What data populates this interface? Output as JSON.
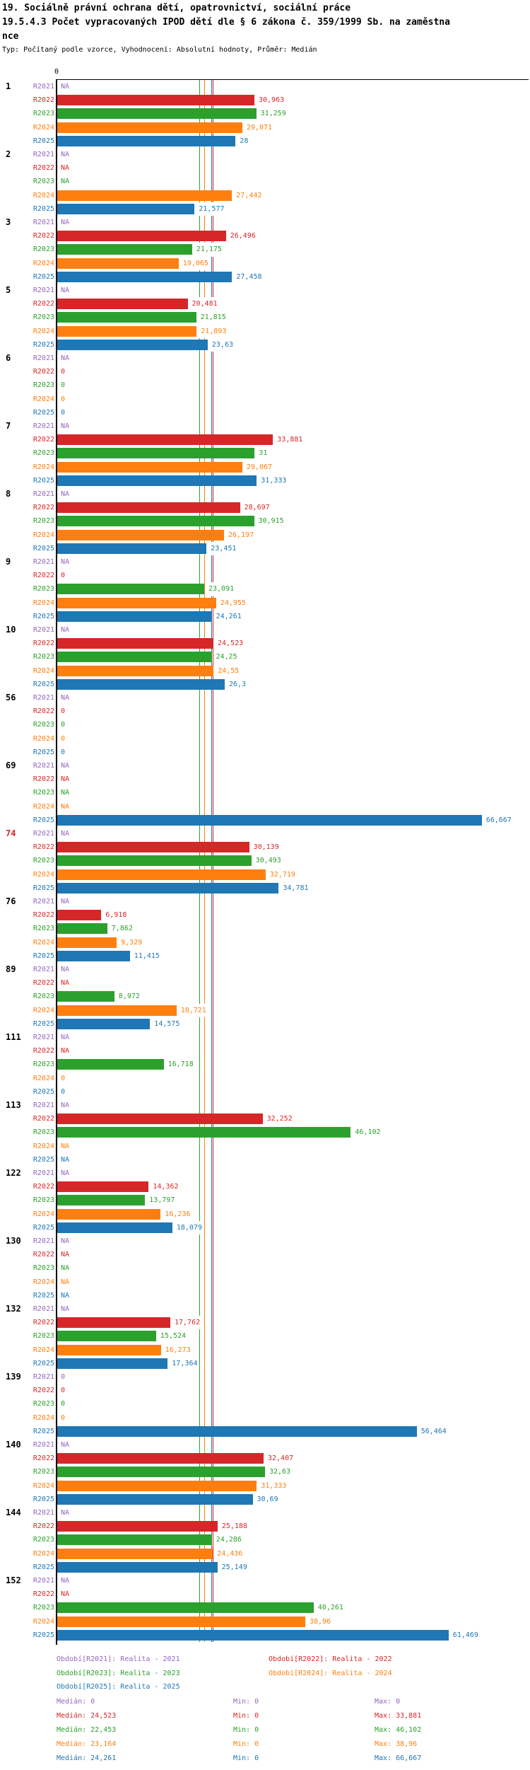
{
  "header": {
    "title": "19. Sociálně právní ochrana dětí, opatrovnictví, sociální práce",
    "subtitle_line1": "19.5.4.3 Počet vypracovaných IPOD dětí dle § 6 zákona č. 359/1999 Sb. na zaměstna",
    "subtitle_line2": "nce",
    "meta": "Typ: Počítaný podle vzorce, Vyhodnocení: Absolutní hodnoty, Průměr: Medián"
  },
  "colors": {
    "R2021": "#9467bd",
    "R2022": "#d62728",
    "R2023": "#2ca02c",
    "R2024": "#ff7f0e",
    "R2025": "#1f77b4",
    "axis": "#000000",
    "highlight_group": "#d62728"
  },
  "chart_data": {
    "type": "bar",
    "orientation": "horizontal",
    "x_axis": {
      "origin_label": "0"
    },
    "series_order": [
      "R2021",
      "R2022",
      "R2023",
      "R2024",
      "R2025"
    ],
    "medians": {
      "R2021": 0,
      "R2022": 24.523,
      "R2023": 22.453,
      "R2024": 23.164,
      "R2025": 24.261
    },
    "groups": [
      {
        "id": "1",
        "highlight": false,
        "rows": [
          {
            "series": "R2021",
            "display": "NA",
            "value": null
          },
          {
            "series": "R2022",
            "display": "30,963",
            "value": 30.963
          },
          {
            "series": "R2023",
            "display": "31,259",
            "value": 31.259
          },
          {
            "series": "R2024",
            "display": "29,071",
            "value": 29.071
          },
          {
            "series": "R2025",
            "display": "28",
            "value": 28
          }
        ]
      },
      {
        "id": "2",
        "highlight": false,
        "rows": [
          {
            "series": "R2021",
            "display": "NA",
            "value": null
          },
          {
            "series": "R2022",
            "display": "NA",
            "value": null
          },
          {
            "series": "R2023",
            "display": "NA",
            "value": null
          },
          {
            "series": "R2024",
            "display": "27,442",
            "value": 27.442
          },
          {
            "series": "R2025",
            "display": "21,577",
            "value": 21.577
          }
        ]
      },
      {
        "id": "3",
        "highlight": false,
        "rows": [
          {
            "series": "R2021",
            "display": "NA",
            "value": null
          },
          {
            "series": "R2022",
            "display": "26,496",
            "value": 26.496
          },
          {
            "series": "R2023",
            "display": "21,175",
            "value": 21.175
          },
          {
            "series": "R2024",
            "display": "19,065",
            "value": 19.065
          },
          {
            "series": "R2025",
            "display": "27,458",
            "value": 27.458
          }
        ]
      },
      {
        "id": "5",
        "highlight": false,
        "rows": [
          {
            "series": "R2021",
            "display": "NA",
            "value": null
          },
          {
            "series": "R2022",
            "display": "20,481",
            "value": 20.481
          },
          {
            "series": "R2023",
            "display": "21,815",
            "value": 21.815
          },
          {
            "series": "R2024",
            "display": "21,893",
            "value": 21.893
          },
          {
            "series": "R2025",
            "display": "23,63",
            "value": 23.63
          }
        ]
      },
      {
        "id": "6",
        "highlight": false,
        "rows": [
          {
            "series": "R2021",
            "display": "NA",
            "value": null
          },
          {
            "series": "R2022",
            "display": "0",
            "value": 0
          },
          {
            "series": "R2023",
            "display": "0",
            "value": 0
          },
          {
            "series": "R2024",
            "display": "0",
            "value": 0
          },
          {
            "series": "R2025",
            "display": "0",
            "value": 0
          }
        ]
      },
      {
        "id": "7",
        "highlight": false,
        "rows": [
          {
            "series": "R2021",
            "display": "NA",
            "value": null
          },
          {
            "series": "R2022",
            "display": "33,881",
            "value": 33.881
          },
          {
            "series": "R2023",
            "display": "31",
            "value": 31
          },
          {
            "series": "R2024",
            "display": "29,067",
            "value": 29.067
          },
          {
            "series": "R2025",
            "display": "31,333",
            "value": 31.333
          }
        ]
      },
      {
        "id": "8",
        "highlight": false,
        "rows": [
          {
            "series": "R2021",
            "display": "NA",
            "value": null
          },
          {
            "series": "R2022",
            "display": "28,697",
            "value": 28.697
          },
          {
            "series": "R2023",
            "display": "30,915",
            "value": 30.915
          },
          {
            "series": "R2024",
            "display": "26,197",
            "value": 26.197
          },
          {
            "series": "R2025",
            "display": "23,451",
            "value": 23.451
          }
        ]
      },
      {
        "id": "9",
        "highlight": false,
        "rows": [
          {
            "series": "R2021",
            "display": "NA",
            "value": null
          },
          {
            "series": "R2022",
            "display": "0",
            "value": 0
          },
          {
            "series": "R2023",
            "display": "23,091",
            "value": 23.091
          },
          {
            "series": "R2024",
            "display": "24,955",
            "value": 24.955
          },
          {
            "series": "R2025",
            "display": "24,261",
            "value": 24.261
          }
        ]
      },
      {
        "id": "10",
        "highlight": false,
        "rows": [
          {
            "series": "R2021",
            "display": "NA",
            "value": null
          },
          {
            "series": "R2022",
            "display": "24,523",
            "value": 24.523
          },
          {
            "series": "R2023",
            "display": "24,25",
            "value": 24.25
          },
          {
            "series": "R2024",
            "display": "24,55",
            "value": 24.55
          },
          {
            "series": "R2025",
            "display": "26,3",
            "value": 26.3
          }
        ]
      },
      {
        "id": "56",
        "highlight": false,
        "rows": [
          {
            "series": "R2021",
            "display": "NA",
            "value": null
          },
          {
            "series": "R2022",
            "display": "0",
            "value": 0
          },
          {
            "series": "R2023",
            "display": "0",
            "value": 0
          },
          {
            "series": "R2024",
            "display": "0",
            "value": 0
          },
          {
            "series": "R2025",
            "display": "0",
            "value": 0
          }
        ]
      },
      {
        "id": "69",
        "highlight": false,
        "rows": [
          {
            "series": "R2021",
            "display": "NA",
            "value": null
          },
          {
            "series": "R2022",
            "display": "NA",
            "value": null
          },
          {
            "series": "R2023",
            "display": "NA",
            "value": null
          },
          {
            "series": "R2024",
            "display": "NA",
            "value": null
          },
          {
            "series": "R2025",
            "display": "66,667",
            "value": 66.667
          }
        ]
      },
      {
        "id": "74",
        "highlight": true,
        "rows": [
          {
            "series": "R2021",
            "display": "NA",
            "value": null
          },
          {
            "series": "R2022",
            "display": "30,139",
            "value": 30.139
          },
          {
            "series": "R2023",
            "display": "30,493",
            "value": 30.493
          },
          {
            "series": "R2024",
            "display": "32,719",
            "value": 32.719
          },
          {
            "series": "R2025",
            "display": "34,781",
            "value": 34.781
          }
        ]
      },
      {
        "id": "76",
        "highlight": false,
        "rows": [
          {
            "series": "R2021",
            "display": "NA",
            "value": null
          },
          {
            "series": "R2022",
            "display": "6,918",
            "value": 6.918
          },
          {
            "series": "R2023",
            "display": "7,862",
            "value": 7.862
          },
          {
            "series": "R2024",
            "display": "9,329",
            "value": 9.329
          },
          {
            "series": "R2025",
            "display": "11,415",
            "value": 11.415
          }
        ]
      },
      {
        "id": "89",
        "highlight": false,
        "rows": [
          {
            "series": "R2021",
            "display": "NA",
            "value": null
          },
          {
            "series": "R2022",
            "display": "NA",
            "value": null
          },
          {
            "series": "R2023",
            "display": "8,972",
            "value": 8.972
          },
          {
            "series": "R2024",
            "display": "18,721",
            "value": 18.721
          },
          {
            "series": "R2025",
            "display": "14,575",
            "value": 14.575
          }
        ]
      },
      {
        "id": "111",
        "highlight": false,
        "rows": [
          {
            "series": "R2021",
            "display": "NA",
            "value": null
          },
          {
            "series": "R2022",
            "display": "NA",
            "value": null
          },
          {
            "series": "R2023",
            "display": "16,718",
            "value": 16.718
          },
          {
            "series": "R2024",
            "display": "0",
            "value": 0
          },
          {
            "series": "R2025",
            "display": "0",
            "value": 0
          }
        ]
      },
      {
        "id": "113",
        "highlight": false,
        "rows": [
          {
            "series": "R2021",
            "display": "NA",
            "value": null
          },
          {
            "series": "R2022",
            "display": "32,252",
            "value": 32.252
          },
          {
            "series": "R2023",
            "display": "46,102",
            "value": 46.102
          },
          {
            "series": "R2024",
            "display": "NA",
            "value": null
          },
          {
            "series": "R2025",
            "display": "NA",
            "value": null
          }
        ]
      },
      {
        "id": "122",
        "highlight": false,
        "rows": [
          {
            "series": "R2021",
            "display": "NA",
            "value": null
          },
          {
            "series": "R2022",
            "display": "14,362",
            "value": 14.362
          },
          {
            "series": "R2023",
            "display": "13,797",
            "value": 13.797
          },
          {
            "series": "R2024",
            "display": "16,236",
            "value": 16.236
          },
          {
            "series": "R2025",
            "display": "18,079",
            "value": 18.079
          }
        ]
      },
      {
        "id": "130",
        "highlight": false,
        "rows": [
          {
            "series": "R2021",
            "display": "NA",
            "value": null
          },
          {
            "series": "R2022",
            "display": "NA",
            "value": null
          },
          {
            "series": "R2023",
            "display": "NA",
            "value": null
          },
          {
            "series": "R2024",
            "display": "NA",
            "value": null
          },
          {
            "series": "R2025",
            "display": "NA",
            "value": null
          }
        ]
      },
      {
        "id": "132",
        "highlight": false,
        "rows": [
          {
            "series": "R2021",
            "display": "NA",
            "value": null
          },
          {
            "series": "R2022",
            "display": "17,762",
            "value": 17.762
          },
          {
            "series": "R2023",
            "display": "15,524",
            "value": 15.524
          },
          {
            "series": "R2024",
            "display": "16,273",
            "value": 16.273
          },
          {
            "series": "R2025",
            "display": "17,364",
            "value": 17.364
          }
        ]
      },
      {
        "id": "139",
        "highlight": false,
        "rows": [
          {
            "series": "R2021",
            "display": "0",
            "value": 0
          },
          {
            "series": "R2022",
            "display": "0",
            "value": 0
          },
          {
            "series": "R2023",
            "display": "0",
            "value": 0
          },
          {
            "series": "R2024",
            "display": "0",
            "value": 0
          },
          {
            "series": "R2025",
            "display": "56,464",
            "value": 56.464
          }
        ]
      },
      {
        "id": "140",
        "highlight": false,
        "rows": [
          {
            "series": "R2021",
            "display": "NA",
            "value": null
          },
          {
            "series": "R2022",
            "display": "32,407",
            "value": 32.407
          },
          {
            "series": "R2023",
            "display": "32,63",
            "value": 32.63
          },
          {
            "series": "R2024",
            "display": "31,333",
            "value": 31.333
          },
          {
            "series": "R2025",
            "display": "30,69",
            "value": 30.69
          }
        ]
      },
      {
        "id": "144",
        "highlight": false,
        "rows": [
          {
            "series": "R2021",
            "display": "NA",
            "value": null
          },
          {
            "series": "R2022",
            "display": "25,188",
            "value": 25.188
          },
          {
            "series": "R2023",
            "display": "24,286",
            "value": 24.286
          },
          {
            "series": "R2024",
            "display": "24,436",
            "value": 24.436
          },
          {
            "series": "R2025",
            "display": "25,149",
            "value": 25.149
          }
        ]
      },
      {
        "id": "152",
        "highlight": false,
        "rows": [
          {
            "series": "R2021",
            "display": "NA",
            "value": null
          },
          {
            "series": "R2022",
            "display": "NA",
            "value": null
          },
          {
            "series": "R2023",
            "display": "40,261",
            "value": 40.261
          },
          {
            "series": "R2024",
            "display": "38,96",
            "value": 38.96
          },
          {
            "series": "R2025",
            "display": "61,469",
            "value": 61.469
          }
        ]
      }
    ]
  },
  "legend": {
    "items": [
      {
        "series": "R2021",
        "label": "Období[R2021]: Realita - 2021"
      },
      {
        "series": "R2022",
        "label": "Období[R2022]: Realita - 2022"
      },
      {
        "series": "R2023",
        "label": "Období[R2023]: Realita - 2023"
      },
      {
        "series": "R2024",
        "label": "Období[R2024]: Realita - 2024"
      },
      {
        "series": "R2025",
        "label": "Období[R2025]: Realita - 2025"
      }
    ]
  },
  "stats": {
    "rows": [
      {
        "series": "R2021",
        "median_label": "Medián: 0",
        "min_label": "Min: 0",
        "max_label": "Max: 0"
      },
      {
        "series": "R2022",
        "median_label": "Medián: 24,523",
        "min_label": "Min: 0",
        "max_label": "Max: 33,881"
      },
      {
        "series": "R2023",
        "median_label": "Medián: 22,453",
        "min_label": "Min: 0",
        "max_label": "Max: 46,102"
      },
      {
        "series": "R2024",
        "median_label": "Medián: 23,164",
        "min_label": "Min: 0",
        "max_label": "Max: 38,96"
      },
      {
        "series": "R2025",
        "median_label": "Medián: 24,261",
        "min_label": "Min: 0",
        "max_label": "Max: 66,667"
      }
    ]
  }
}
